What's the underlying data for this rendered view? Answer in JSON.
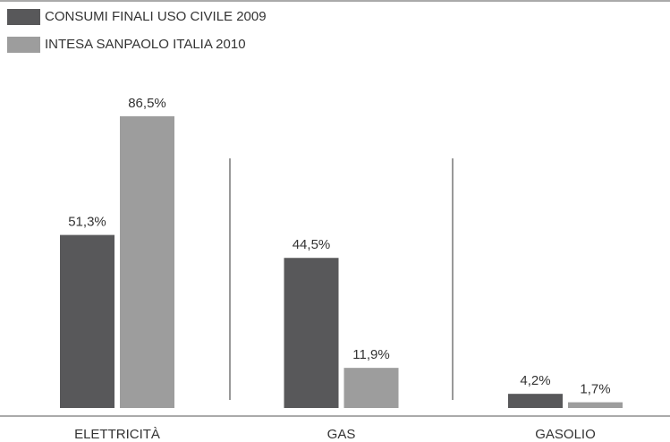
{
  "chart_data": {
    "type": "bar",
    "categories": [
      "ELETTRICITÀ",
      "GAS",
      "GASOLIO"
    ],
    "series": [
      {
        "name": "CONSUMI FINALI USO CIVILE 2009",
        "color": "#58585a",
        "values": [
          51.3,
          44.5,
          4.2
        ],
        "value_labels": [
          "51,3%",
          "44,5%",
          "4,2%"
        ]
      },
      {
        "name": "INTESA SANPAOLO ITALIA 2010",
        "color": "#9d9d9d",
        "values": [
          86.5,
          11.9,
          1.7
        ],
        "value_labels": [
          "86,5%",
          "11,9%",
          "1,7%"
        ]
      }
    ]
  }
}
